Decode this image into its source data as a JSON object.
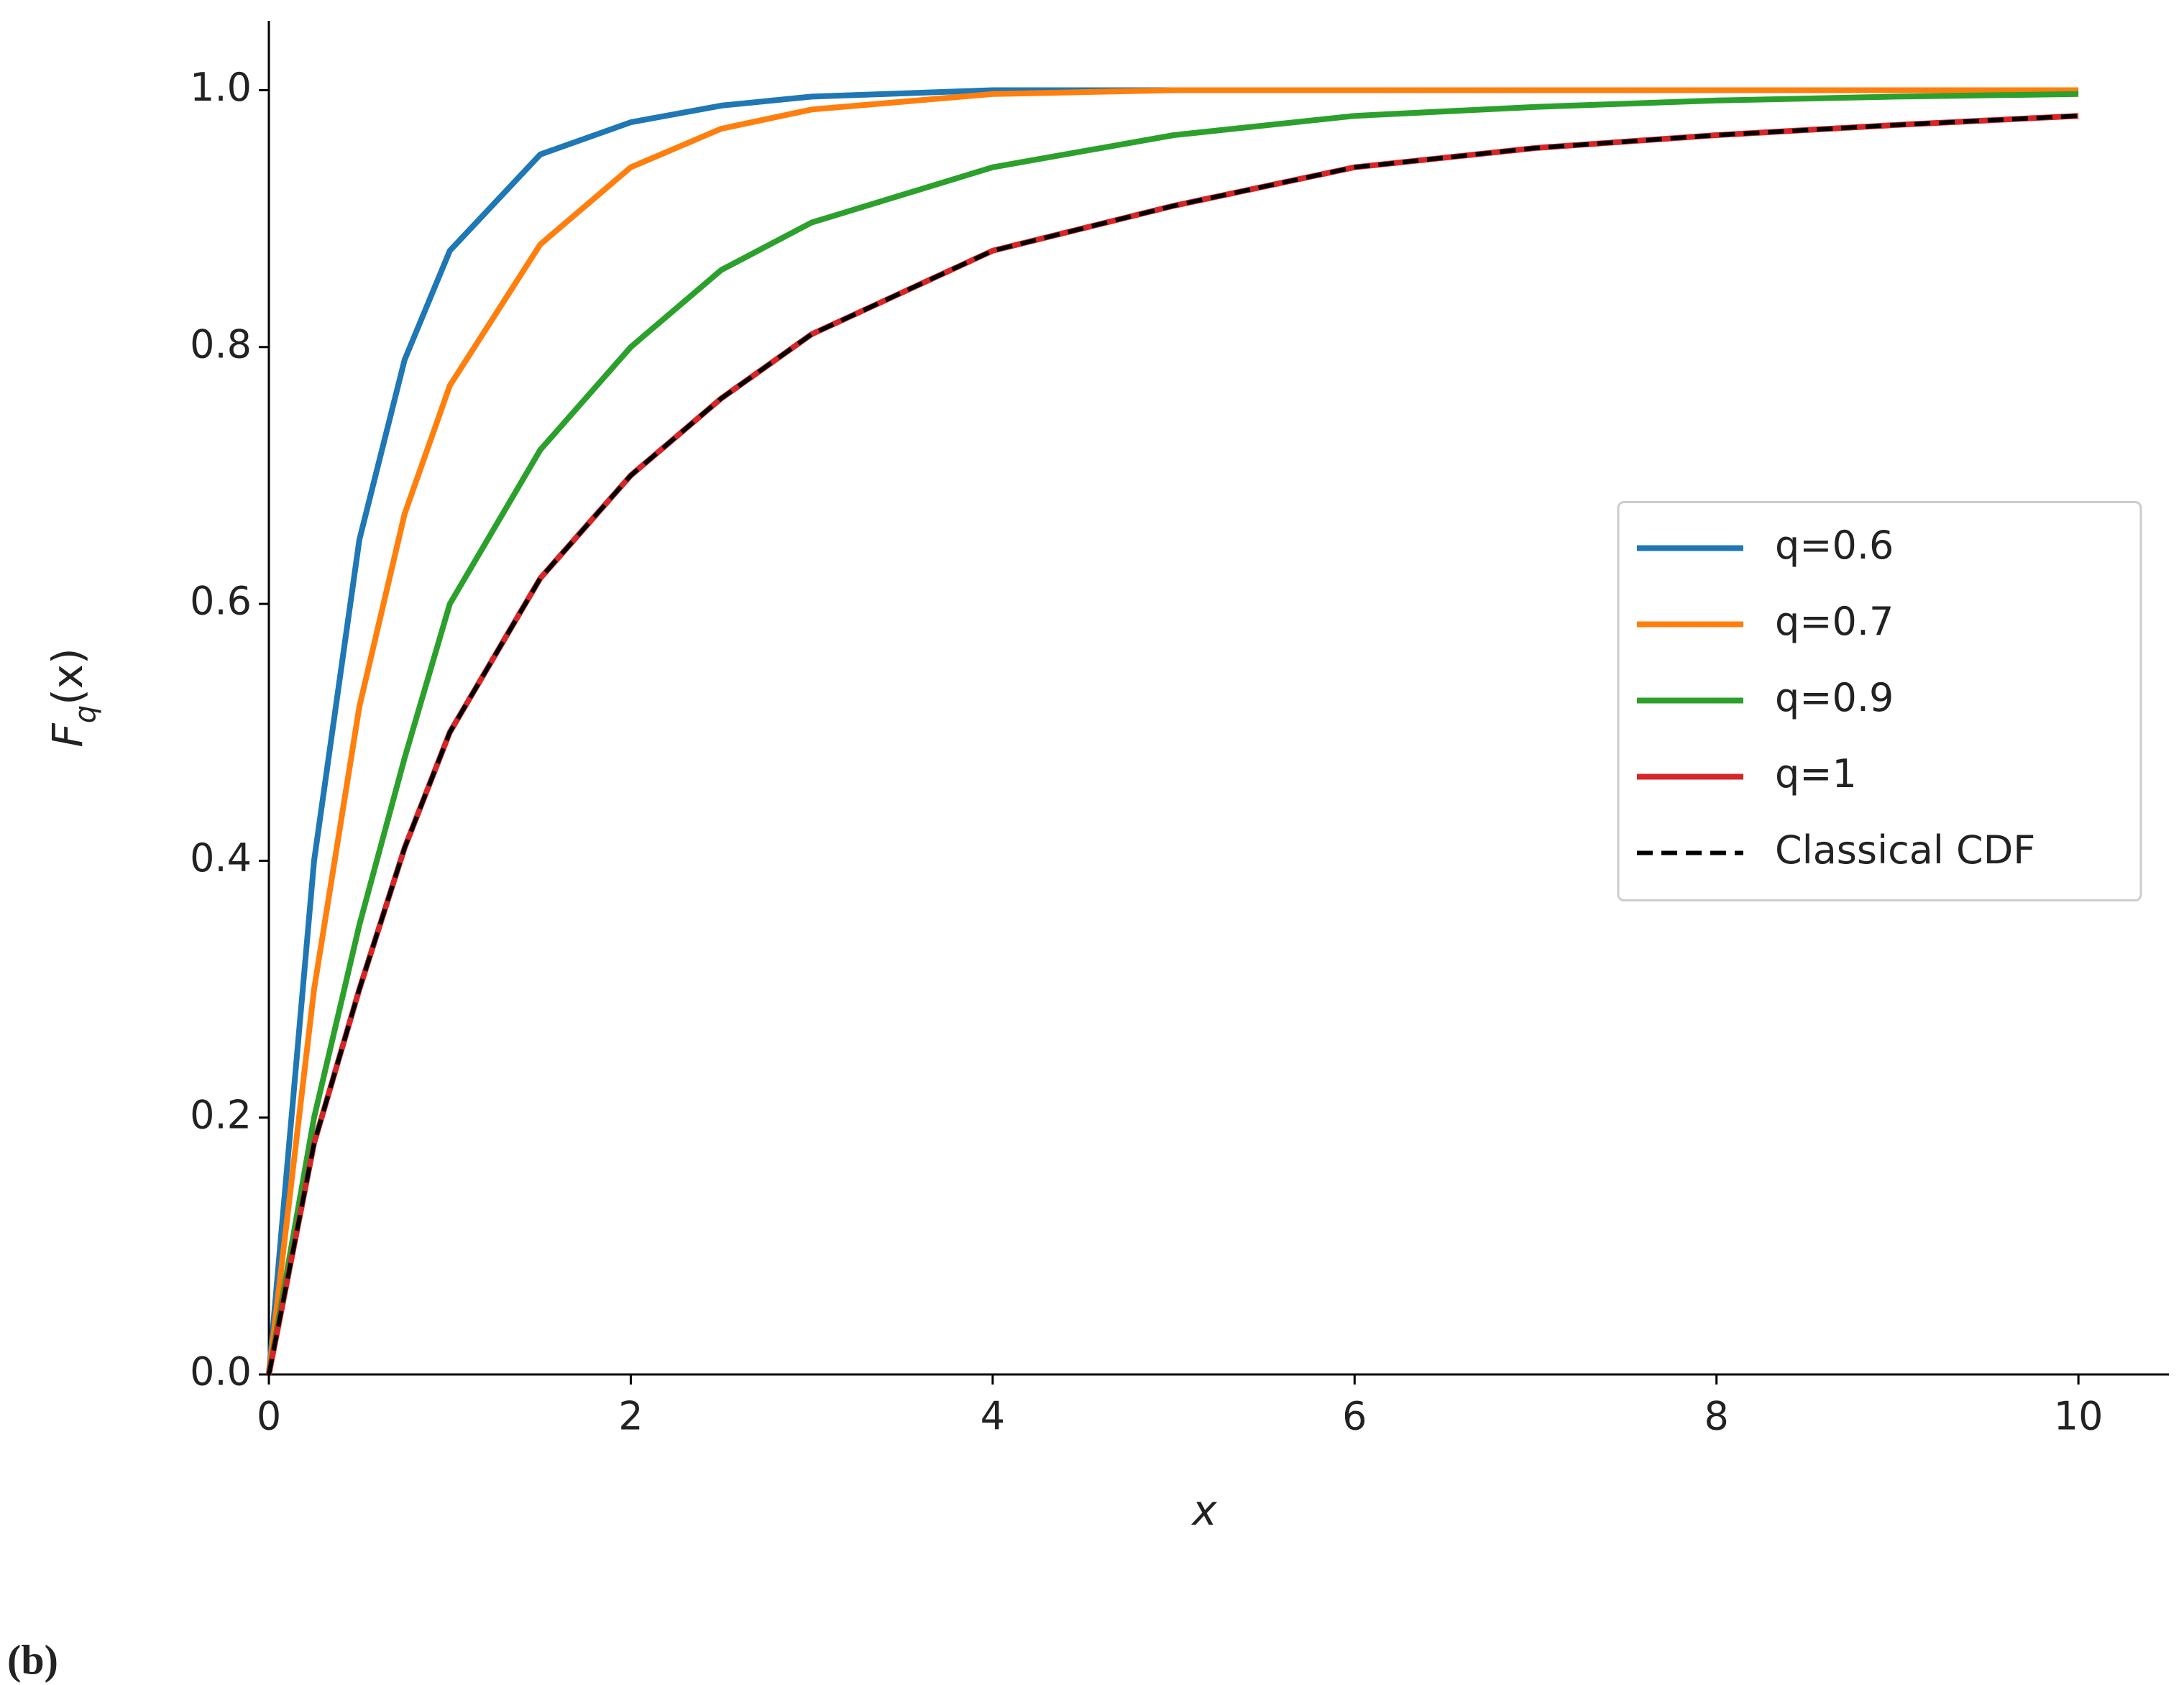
{
  "chart_data": {
    "type": "line",
    "xlabel": "x",
    "ylabel_parts": [
      "F",
      "q",
      "(x)"
    ],
    "panel_label": "(b)",
    "x": [
      0,
      0.25,
      0.5,
      0.75,
      1,
      1.5,
      2,
      2.5,
      3,
      4,
      5,
      6,
      7,
      8,
      9,
      10
    ],
    "series": [
      {
        "name": "q=0.6",
        "color": "#1f77b4",
        "style": "solid",
        "values": [
          0,
          0.4,
          0.65,
          0.79,
          0.875,
          0.95,
          0.975,
          0.988,
          0.995,
          1.0,
          1.0,
          1.0,
          1.0,
          1.0,
          1.0,
          1.0
        ]
      },
      {
        "name": "q=0.7",
        "color": "#ff7f0e",
        "style": "solid",
        "values": [
          0,
          0.3,
          0.52,
          0.67,
          0.77,
          0.88,
          0.94,
          0.97,
          0.985,
          0.997,
          1.0,
          1.0,
          1.0,
          1.0,
          1.0,
          1.0
        ]
      },
      {
        "name": "q=0.9",
        "color": "#2ca02c",
        "style": "solid",
        "values": [
          0,
          0.2,
          0.35,
          0.48,
          0.6,
          0.72,
          0.8,
          0.86,
          0.897,
          0.94,
          0.965,
          0.98,
          0.987,
          0.992,
          0.995,
          0.997
        ]
      },
      {
        "name": "q=1",
        "color": "#d62728",
        "style": "solid",
        "values": [
          0,
          0.18,
          0.3,
          0.41,
          0.5,
          0.62,
          0.7,
          0.76,
          0.81,
          0.875,
          0.91,
          0.94,
          0.955,
          0.965,
          0.973,
          0.98
        ]
      },
      {
        "name": "Classical CDF",
        "color": "#000000",
        "style": "dashed",
        "values": [
          0,
          0.18,
          0.3,
          0.41,
          0.5,
          0.62,
          0.7,
          0.76,
          0.81,
          0.875,
          0.91,
          0.94,
          0.955,
          0.965,
          0.973,
          0.98
        ]
      }
    ],
    "xlim": [
      0,
      10.5
    ],
    "ylim": [
      0,
      1.054
    ],
    "xticks": [
      0,
      2,
      4,
      6,
      8,
      10
    ],
    "yticks": [
      {
        "value": 0,
        "label": "0.0"
      },
      {
        "value": 0.2,
        "label": "0.2"
      },
      {
        "value": 0.4,
        "label": "0.4"
      },
      {
        "value": 0.6,
        "label": "0.6"
      },
      {
        "value": 0.8,
        "label": "0.8"
      },
      {
        "value": 1.0,
        "label": "1.0"
      }
    ],
    "legend": "center right",
    "grid": false
  }
}
